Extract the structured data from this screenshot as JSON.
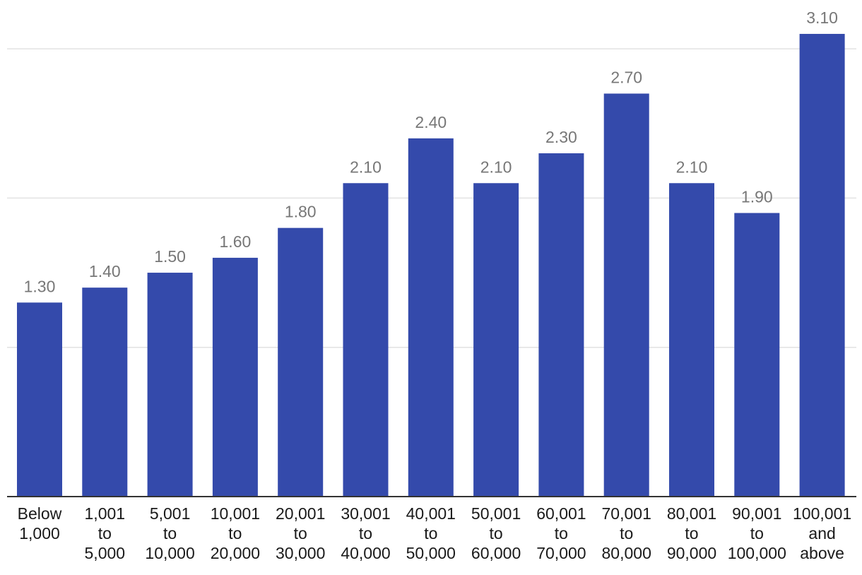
{
  "chart_data": {
    "type": "bar",
    "categories": [
      [
        "Below",
        "1,000"
      ],
      [
        "1,001",
        "to",
        "5,000"
      ],
      [
        "5,001",
        "to",
        "10,000"
      ],
      [
        "10,001",
        "to",
        "20,000"
      ],
      [
        "20,001",
        "to",
        "30,000"
      ],
      [
        "30,001",
        "to",
        "40,000"
      ],
      [
        "40,001",
        "to",
        "50,000"
      ],
      [
        "50,001",
        "to",
        "60,000"
      ],
      [
        "60,001",
        "to",
        "70,000"
      ],
      [
        "70,001",
        "to",
        "80,000"
      ],
      [
        "80,001",
        "to",
        "90,000"
      ],
      [
        "90,001",
        "to",
        "100,000"
      ],
      [
        "100,001",
        "and",
        "above"
      ]
    ],
    "values": [
      1.3,
      1.4,
      1.5,
      1.6,
      1.8,
      2.1,
      2.4,
      2.1,
      2.3,
      2.7,
      2.1,
      1.9,
      3.1
    ],
    "value_labels": [
      "1.30",
      "1.40",
      "1.50",
      "1.60",
      "1.80",
      "2.10",
      "2.40",
      "2.10",
      "2.30",
      "2.70",
      "2.10",
      "1.90",
      "3.10"
    ],
    "title": "",
    "xlabel": "",
    "ylabel": "",
    "ylim": [
      0,
      3
    ],
    "gridlines": [
      1,
      2,
      3
    ],
    "grid": true,
    "legend": "none",
    "colors": {
      "bar": "#344aab",
      "grid": "#e2e2e2",
      "baseline": "#333333",
      "value_label": "#777777",
      "tick_label": "#1a1a1a"
    }
  }
}
